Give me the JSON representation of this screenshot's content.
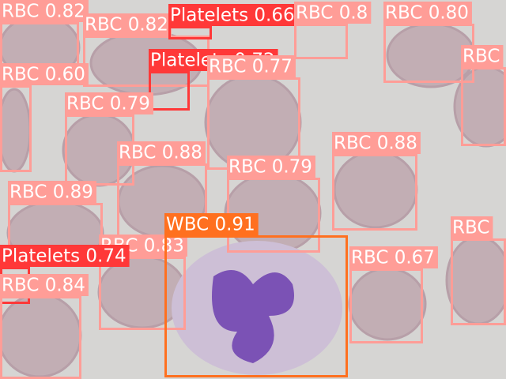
{
  "detections": [
    {
      "label": "RBC 0.82"
    },
    {
      "label": "RBC 0.82"
    },
    {
      "label": "Platelets 0.66"
    },
    {
      "label": "RBC 0.8"
    },
    {
      "label": "RBC 0.80"
    },
    {
      "label": "RBC"
    },
    {
      "label": "Platelets 0.72"
    },
    {
      "label": "RBC 0.77"
    },
    {
      "label": "RBC 0.60"
    },
    {
      "label": "RBC 0.79"
    },
    {
      "label": "RBC 0.88"
    },
    {
      "label": "RBC 0.88"
    },
    {
      "label": "RBC 0.79"
    },
    {
      "label": "RBC 0.89"
    },
    {
      "label": "RBC 0.83"
    },
    {
      "label": "RBC"
    },
    {
      "label": "RBC 0.67"
    },
    {
      "label": "Platelets 0.74"
    },
    {
      "label": "RBC 0.84"
    },
    {
      "label": "WBC 0.91"
    }
  ]
}
